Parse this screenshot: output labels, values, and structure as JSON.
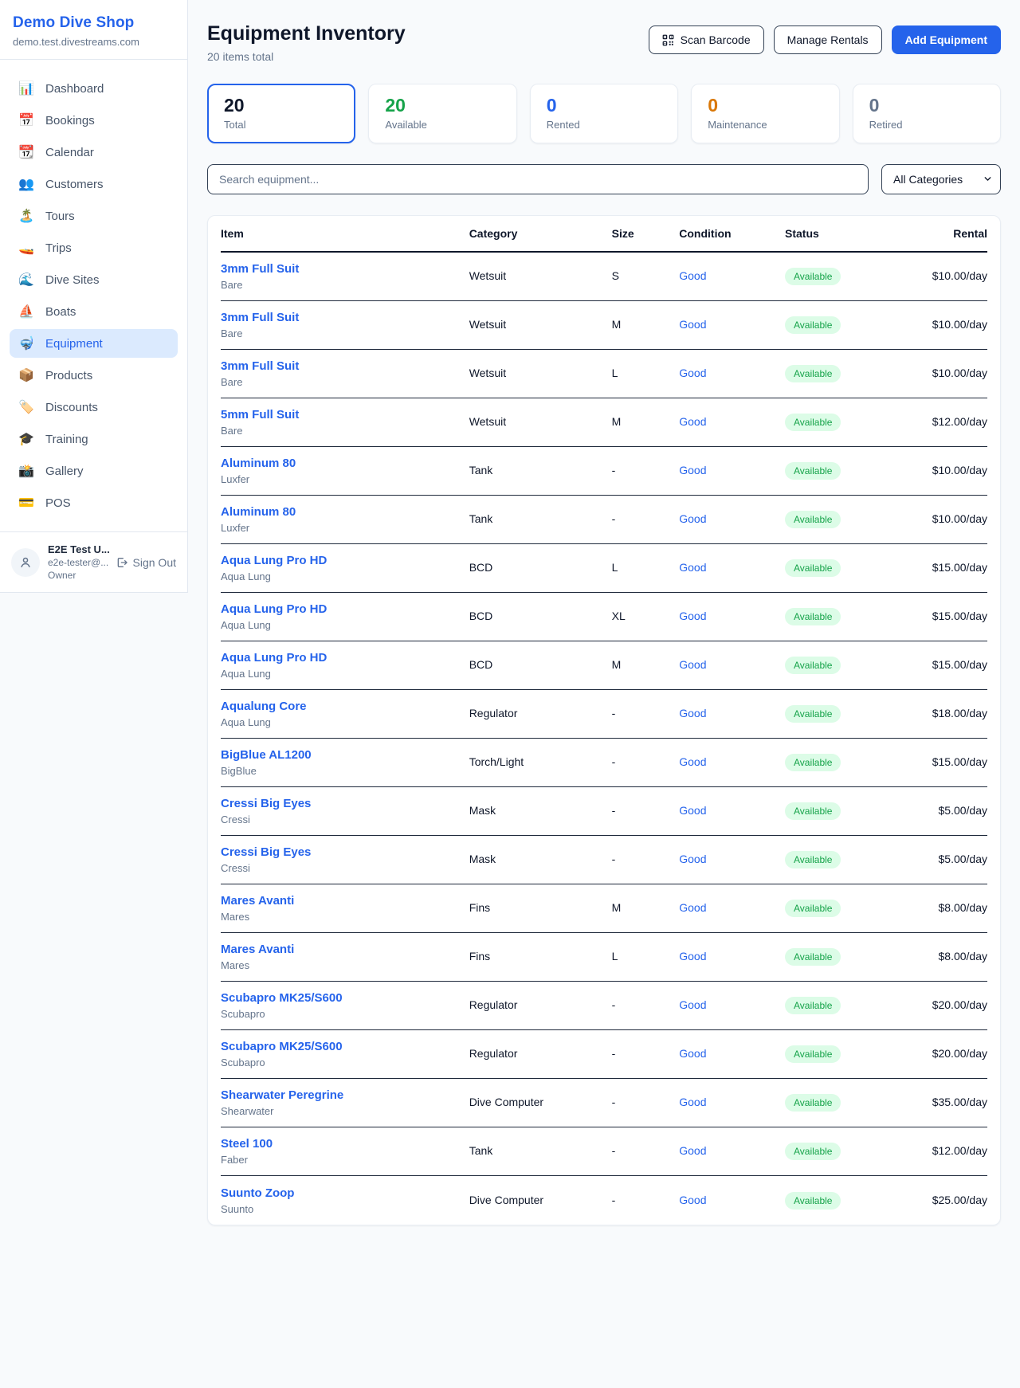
{
  "sidebar": {
    "shop_name": "Demo Dive Shop",
    "shop_domain": "demo.test.divestreams.com",
    "items": [
      {
        "icon": "📊",
        "icon_name": "dashboard-icon",
        "label": "Dashboard",
        "active": false
      },
      {
        "icon": "📅",
        "icon_name": "bookings-icon",
        "label": "Bookings",
        "active": false
      },
      {
        "icon": "📆",
        "icon_name": "calendar-icon",
        "label": "Calendar",
        "active": false
      },
      {
        "icon": "👥",
        "icon_name": "customers-icon",
        "label": "Customers",
        "active": false
      },
      {
        "icon": "🏝️",
        "icon_name": "tours-icon",
        "label": "Tours",
        "active": false
      },
      {
        "icon": "🚤",
        "icon_name": "trips-icon",
        "label": "Trips",
        "active": false
      },
      {
        "icon": "🌊",
        "icon_name": "dive-sites-icon",
        "label": "Dive Sites",
        "active": false
      },
      {
        "icon": "⛵",
        "icon_name": "boats-icon",
        "label": "Boats",
        "active": false
      },
      {
        "icon": "🤿",
        "icon_name": "equipment-icon",
        "label": "Equipment",
        "active": true
      },
      {
        "icon": "📦",
        "icon_name": "products-icon",
        "label": "Products",
        "active": false
      },
      {
        "icon": "🏷️",
        "icon_name": "discounts-icon",
        "label": "Discounts",
        "active": false
      },
      {
        "icon": "🎓",
        "icon_name": "training-icon",
        "label": "Training",
        "active": false
      },
      {
        "icon": "📸",
        "icon_name": "gallery-icon",
        "label": "Gallery",
        "active": false
      },
      {
        "icon": "💳",
        "icon_name": "pos-icon",
        "label": "POS",
        "active": false
      }
    ],
    "user": {
      "name": "E2E Test U...",
      "email": "e2e-tester@...",
      "role": "Owner",
      "sign_out_label": "Sign Out"
    }
  },
  "header": {
    "title": "Equipment Inventory",
    "subtitle": "20 items total",
    "scan_barcode_label": "Scan Barcode",
    "manage_rentals_label": "Manage Rentals",
    "add_equipment_label": "Add Equipment"
  },
  "stats": [
    {
      "value": "20",
      "label": "Total",
      "color": "#0f172a",
      "active": true
    },
    {
      "value": "20",
      "label": "Available",
      "color": "#16a34a",
      "active": false
    },
    {
      "value": "0",
      "label": "Rented",
      "color": "#2563eb",
      "active": false
    },
    {
      "value": "0",
      "label": "Maintenance",
      "color": "#d97706",
      "active": false
    },
    {
      "value": "0",
      "label": "Retired",
      "color": "#64748b",
      "active": false
    }
  ],
  "filters": {
    "search_placeholder": "Search equipment...",
    "category_selected": "All Categories"
  },
  "table": {
    "columns": [
      "Item",
      "Category",
      "Size",
      "Condition",
      "Status",
      "Rental"
    ],
    "status_style": {
      "bg": "#dcfce7",
      "text": "#16a34a"
    },
    "rows": [
      {
        "item": "3mm Full Suit",
        "brand": "Bare",
        "category": "Wetsuit",
        "size": "S",
        "condition": "Good",
        "status": "Available",
        "rental": "$10.00/day"
      },
      {
        "item": "3mm Full Suit",
        "brand": "Bare",
        "category": "Wetsuit",
        "size": "M",
        "condition": "Good",
        "status": "Available",
        "rental": "$10.00/day"
      },
      {
        "item": "3mm Full Suit",
        "brand": "Bare",
        "category": "Wetsuit",
        "size": "L",
        "condition": "Good",
        "status": "Available",
        "rental": "$10.00/day"
      },
      {
        "item": "5mm Full Suit",
        "brand": "Bare",
        "category": "Wetsuit",
        "size": "M",
        "condition": "Good",
        "status": "Available",
        "rental": "$12.00/day"
      },
      {
        "item": "Aluminum 80",
        "brand": "Luxfer",
        "category": "Tank",
        "size": "-",
        "condition": "Good",
        "status": "Available",
        "rental": "$10.00/day"
      },
      {
        "item": "Aluminum 80",
        "brand": "Luxfer",
        "category": "Tank",
        "size": "-",
        "condition": "Good",
        "status": "Available",
        "rental": "$10.00/day"
      },
      {
        "item": "Aqua Lung Pro HD",
        "brand": "Aqua Lung",
        "category": "BCD",
        "size": "L",
        "condition": "Good",
        "status": "Available",
        "rental": "$15.00/day"
      },
      {
        "item": "Aqua Lung Pro HD",
        "brand": "Aqua Lung",
        "category": "BCD",
        "size": "XL",
        "condition": "Good",
        "status": "Available",
        "rental": "$15.00/day"
      },
      {
        "item": "Aqua Lung Pro HD",
        "brand": "Aqua Lung",
        "category": "BCD",
        "size": "M",
        "condition": "Good",
        "status": "Available",
        "rental": "$15.00/day"
      },
      {
        "item": "Aqualung Core",
        "brand": "Aqua Lung",
        "category": "Regulator",
        "size": "-",
        "condition": "Good",
        "status": "Available",
        "rental": "$18.00/day"
      },
      {
        "item": "BigBlue AL1200",
        "brand": "BigBlue",
        "category": "Torch/Light",
        "size": "-",
        "condition": "Good",
        "status": "Available",
        "rental": "$15.00/day"
      },
      {
        "item": "Cressi Big Eyes",
        "brand": "Cressi",
        "category": "Mask",
        "size": "-",
        "condition": "Good",
        "status": "Available",
        "rental": "$5.00/day"
      },
      {
        "item": "Cressi Big Eyes",
        "brand": "Cressi",
        "category": "Mask",
        "size": "-",
        "condition": "Good",
        "status": "Available",
        "rental": "$5.00/day"
      },
      {
        "item": "Mares Avanti",
        "brand": "Mares",
        "category": "Fins",
        "size": "M",
        "condition": "Good",
        "status": "Available",
        "rental": "$8.00/day"
      },
      {
        "item": "Mares Avanti",
        "brand": "Mares",
        "category": "Fins",
        "size": "L",
        "condition": "Good",
        "status": "Available",
        "rental": "$8.00/day"
      },
      {
        "item": "Scubapro MK25/S600",
        "brand": "Scubapro",
        "category": "Regulator",
        "size": "-",
        "condition": "Good",
        "status": "Available",
        "rental": "$20.00/day"
      },
      {
        "item": "Scubapro MK25/S600",
        "brand": "Scubapro",
        "category": "Regulator",
        "size": "-",
        "condition": "Good",
        "status": "Available",
        "rental": "$20.00/day"
      },
      {
        "item": "Shearwater Peregrine",
        "brand": "Shearwater",
        "category": "Dive Computer",
        "size": "-",
        "condition": "Good",
        "status": "Available",
        "rental": "$35.00/day"
      },
      {
        "item": "Steel 100",
        "brand": "Faber",
        "category": "Tank",
        "size": "-",
        "condition": "Good",
        "status": "Available",
        "rental": "$12.00/day"
      },
      {
        "item": "Suunto Zoop",
        "brand": "Suunto",
        "category": "Dive Computer",
        "size": "-",
        "condition": "Good",
        "status": "Available",
        "rental": "$25.00/day"
      }
    ]
  }
}
